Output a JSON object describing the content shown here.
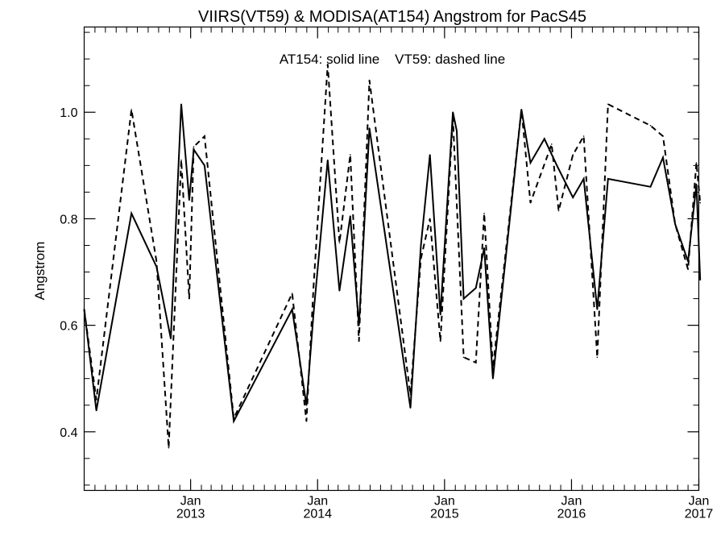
{
  "chart_data": {
    "type": "line",
    "title": "VIIRS(VT59) & MODISA(AT154)  Angstrom for PacS45",
    "annotation": "AT154: solid line    VT59: dashed line",
    "xlabel": "",
    "ylabel": "Angstrom",
    "xlim": [
      "2012-03-01",
      "2017-01-01"
    ],
    "ylim": [
      0.29,
      1.16
    ],
    "yticks": [
      0.4,
      0.6,
      0.8,
      1.0
    ],
    "ytick_labels": [
      "0.4",
      "0.6",
      "0.8",
      "1.0"
    ],
    "xticks": [
      {
        "date": "2013-01-01",
        "month": "Jan",
        "year": "2013"
      },
      {
        "date": "2014-01-01",
        "month": "Jan",
        "year": "2014"
      },
      {
        "date": "2015-01-01",
        "month": "Jan",
        "year": "2015"
      },
      {
        "date": "2016-01-01",
        "month": "Jan",
        "year": "2016"
      },
      {
        "date": "2017-01-01",
        "month": "Jan",
        "year": "2017"
      }
    ],
    "grid": false,
    "series": [
      {
        "name": "AT154",
        "style": "solid",
        "color": "#000000",
        "points": [
          [
            "2012-03-01",
            0.63
          ],
          [
            "2012-04-05",
            0.44
          ],
          [
            "2012-07-15",
            0.81
          ],
          [
            "2012-09-25",
            0.71
          ],
          [
            "2012-11-05",
            0.575
          ],
          [
            "2012-12-05",
            1.015
          ],
          [
            "2012-12-28",
            0.835
          ],
          [
            "2013-01-10",
            0.93
          ],
          [
            "2013-02-10",
            0.9
          ],
          [
            "2013-05-05",
            0.42
          ],
          [
            "2013-10-20",
            0.63
          ],
          [
            "2013-11-30",
            0.45
          ],
          [
            "2013-12-20",
            0.62
          ],
          [
            "2014-01-30",
            0.91
          ],
          [
            "2014-03-05",
            0.665
          ],
          [
            "2014-04-05",
            0.805
          ],
          [
            "2014-04-30",
            0.6
          ],
          [
            "2014-05-30",
            0.97
          ],
          [
            "2014-09-25",
            0.445
          ],
          [
            "2014-10-25",
            0.75
          ],
          [
            "2014-11-20",
            0.92
          ],
          [
            "2014-12-20",
            0.62
          ],
          [
            "2015-01-25",
            1.0
          ],
          [
            "2015-02-05",
            0.965
          ],
          [
            "2015-02-25",
            0.65
          ],
          [
            "2015-04-01",
            0.67
          ],
          [
            "2015-04-25",
            0.745
          ],
          [
            "2015-05-20",
            0.5
          ],
          [
            "2015-08-10",
            1.005
          ],
          [
            "2015-09-05",
            0.905
          ],
          [
            "2015-10-15",
            0.95
          ],
          [
            "2015-11-20",
            0.9
          ],
          [
            "2016-01-05",
            0.84
          ],
          [
            "2016-02-05",
            0.875
          ],
          [
            "2016-03-15",
            0.63
          ],
          [
            "2016-04-15",
            0.875
          ],
          [
            "2016-08-15",
            0.86
          ],
          [
            "2016-09-20",
            0.915
          ],
          [
            "2016-10-25",
            0.79
          ],
          [
            "2016-12-01",
            0.72
          ],
          [
            "2016-12-25",
            0.865
          ],
          [
            "2017-01-05",
            0.685
          ]
        ]
      },
      {
        "name": "VT59",
        "style": "dashed",
        "color": "#000000",
        "points": [
          [
            "2012-03-01",
            0.63
          ],
          [
            "2012-04-05",
            0.46
          ],
          [
            "2012-07-15",
            1.005
          ],
          [
            "2012-09-25",
            0.72
          ],
          [
            "2012-10-30",
            0.37
          ],
          [
            "2012-12-05",
            0.91
          ],
          [
            "2012-12-28",
            0.65
          ],
          [
            "2013-01-10",
            0.935
          ],
          [
            "2013-02-10",
            0.955
          ],
          [
            "2013-05-05",
            0.425
          ],
          [
            "2013-10-20",
            0.66
          ],
          [
            "2013-11-30",
            0.42
          ],
          [
            "2013-12-20",
            0.67
          ],
          [
            "2014-01-30",
            1.09
          ],
          [
            "2014-03-05",
            0.755
          ],
          [
            "2014-04-05",
            0.92
          ],
          [
            "2014-04-30",
            0.57
          ],
          [
            "2014-05-30",
            1.06
          ],
          [
            "2014-09-25",
            0.47
          ],
          [
            "2014-10-25",
            0.725
          ],
          [
            "2014-11-20",
            0.8
          ],
          [
            "2014-12-20",
            0.57
          ],
          [
            "2015-01-25",
            0.99
          ],
          [
            "2015-02-25",
            0.54
          ],
          [
            "2015-04-01",
            0.53
          ],
          [
            "2015-04-25",
            0.81
          ],
          [
            "2015-05-20",
            0.52
          ],
          [
            "2015-08-10",
            1.005
          ],
          [
            "2015-09-05",
            0.83
          ],
          [
            "2015-11-05",
            0.94
          ],
          [
            "2015-11-25",
            0.815
          ],
          [
            "2016-01-05",
            0.92
          ],
          [
            "2016-02-05",
            0.955
          ],
          [
            "2016-03-15",
            0.54
          ],
          [
            "2016-04-15",
            1.015
          ],
          [
            "2016-08-15",
            0.975
          ],
          [
            "2016-09-20",
            0.955
          ],
          [
            "2016-10-25",
            0.79
          ],
          [
            "2016-12-01",
            0.705
          ],
          [
            "2016-12-25",
            0.905
          ],
          [
            "2017-01-05",
            0.83
          ]
        ]
      }
    ]
  }
}
